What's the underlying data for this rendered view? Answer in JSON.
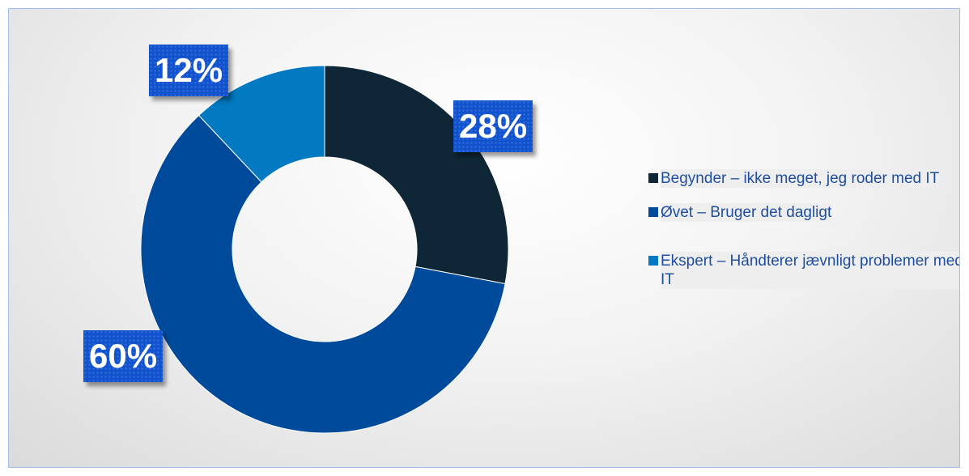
{
  "chart_data": {
    "type": "pie",
    "donut": true,
    "categories": [
      "Begynder – ikke meget, jeg roder med IT",
      "Øvet – Bruger det dagligt",
      "Ekspert – Håndterer jævnligt problemer med IT"
    ],
    "values": [
      28,
      60,
      12
    ],
    "value_suffix": "%",
    "data_labels": [
      "28%",
      "60%",
      "12%"
    ],
    "colors": [
      "#0f2637",
      "#004a9c",
      "#0279c1"
    ],
    "legend_position": "right",
    "start_angle_deg": 0,
    "direction": "clockwise"
  }
}
